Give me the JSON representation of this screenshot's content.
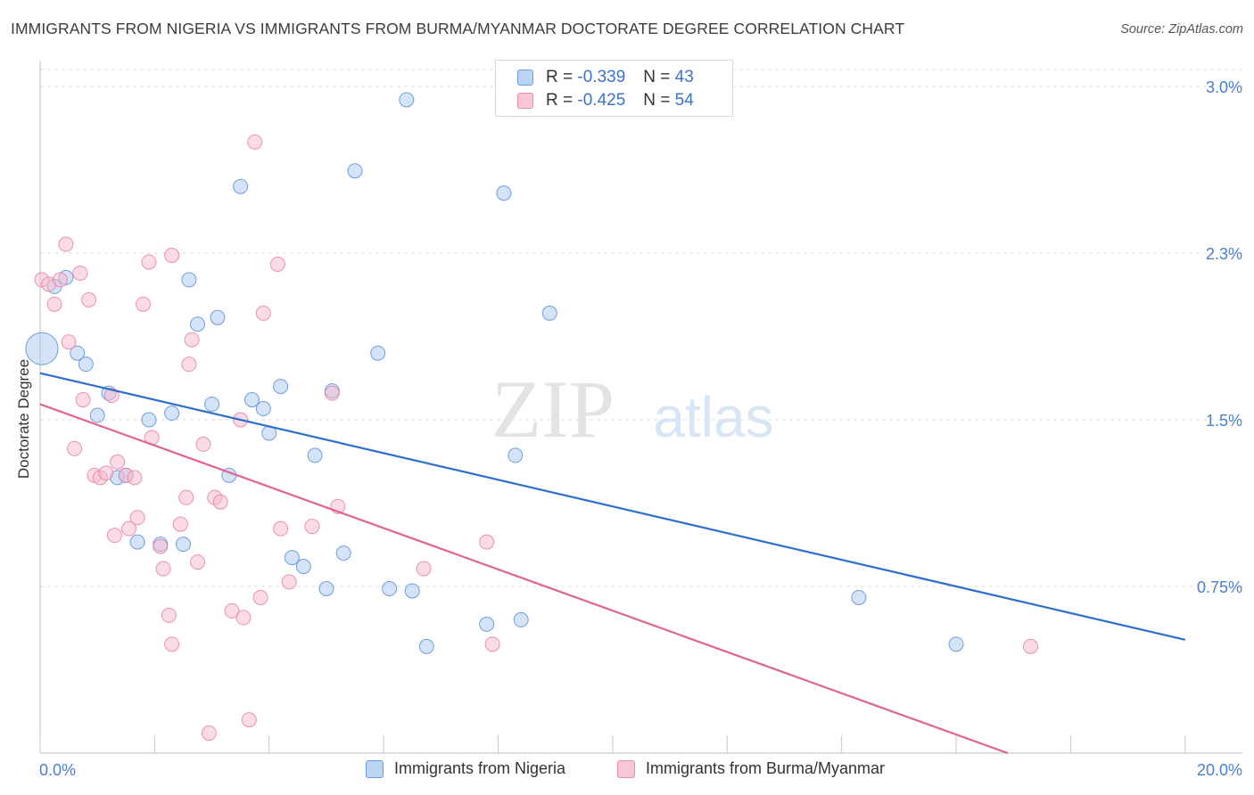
{
  "title": "IMMIGRANTS FROM NIGERIA VS IMMIGRANTS FROM BURMA/MYANMAR DOCTORATE DEGREE CORRELATION CHART",
  "source": "Source: ZipAtlas.com",
  "watermark": {
    "zip": "ZIP",
    "atlas": "atlas"
  },
  "colors": {
    "nigeria_fill": "#a9c8f0",
    "nigeria_stroke": "#5b8fd6",
    "nigeria_line": "#2d6fcb",
    "burma_fill": "#f7b9cd",
    "burma_stroke": "#e77fa3",
    "burma_line": "#e0648f",
    "tick_text": "#4a7fcf",
    "grid": "#dcdcdc"
  },
  "legend": {
    "r_label": "R =",
    "n_label": "N =",
    "rows": [
      {
        "r": "-0.339",
        "n": "43"
      },
      {
        "r": "-0.425",
        "n": "54"
      }
    ]
  },
  "bottom_legend": [
    "Immigrants from Nigeria",
    "Immigrants from Burma/Myanmar"
  ],
  "chart_data": {
    "type": "scatter",
    "title": "IMMIGRANTS FROM NIGERIA VS IMMIGRANTS FROM BURMA/MYANMAR DOCTORATE DEGREE CORRELATION CHART",
    "xlabel": "",
    "ylabel": "Doctorate Degree",
    "xlim": [
      0,
      21
    ],
    "ylim": [
      0,
      3.0
    ],
    "x_ticks_labeled": [
      {
        "value": 0,
        "label": "0.0%"
      },
      {
        "value": 20,
        "label": "20.0%"
      }
    ],
    "y_ticks": [
      {
        "value": 0.75,
        "label": "0.75%"
      },
      {
        "value": 1.5,
        "label": "1.5%"
      },
      {
        "value": 2.25,
        "label": "2.3%"
      },
      {
        "value": 3.0,
        "label": "3.0%"
      }
    ],
    "grid": true,
    "legend_position": "top-center",
    "series": [
      {
        "name": "Immigrants from Nigeria",
        "r": -0.339,
        "n": 43,
        "trend": {
          "x": [
            0,
            20.0
          ],
          "y": [
            1.71,
            0.51
          ]
        },
        "points": [
          [
            0,
            1.82
          ],
          [
            0.25,
            2.1
          ],
          [
            0.45,
            2.14
          ],
          [
            0.65,
            1.8
          ],
          [
            0.8,
            1.75
          ],
          [
            1.0,
            1.52
          ],
          [
            1.2,
            1.62
          ],
          [
            1.35,
            1.24
          ],
          [
            1.5,
            1.25
          ],
          [
            1.7,
            0.95
          ],
          [
            1.9,
            1.5
          ],
          [
            2.1,
            0.94
          ],
          [
            2.3,
            1.53
          ],
          [
            2.5,
            0.94
          ],
          [
            2.6,
            2.13
          ],
          [
            2.75,
            1.93
          ],
          [
            3.0,
            1.57
          ],
          [
            3.1,
            1.96
          ],
          [
            3.3,
            1.25
          ],
          [
            3.5,
            2.55
          ],
          [
            3.7,
            1.59
          ],
          [
            3.9,
            1.55
          ],
          [
            4.0,
            1.44
          ],
          [
            4.2,
            1.65
          ],
          [
            4.4,
            0.88
          ],
          [
            4.6,
            0.84
          ],
          [
            4.8,
            1.34
          ],
          [
            5.0,
            0.74
          ],
          [
            5.1,
            1.63
          ],
          [
            5.3,
            0.9
          ],
          [
            5.5,
            2.62
          ],
          [
            5.9,
            1.8
          ],
          [
            6.1,
            0.74
          ],
          [
            6.5,
            0.73
          ],
          [
            6.75,
            0.48
          ],
          [
            6.4,
            2.94
          ],
          [
            7.8,
            0.58
          ],
          [
            8.1,
            2.52
          ],
          [
            8.3,
            1.34
          ],
          [
            8.4,
            0.6
          ],
          [
            8.9,
            1.98
          ],
          [
            14.3,
            0.7
          ],
          [
            16.0,
            0.49
          ]
        ]
      },
      {
        "name": "Immigrants from Burma/Myanmar",
        "r": -0.425,
        "n": 54,
        "trend": {
          "x": [
            0,
            16.9
          ],
          "y": [
            1.57,
            0.0
          ]
        },
        "points": [
          [
            0,
            2.13
          ],
          [
            0.15,
            2.11
          ],
          [
            0.25,
            2.02
          ],
          [
            0.35,
            2.13
          ],
          [
            0.45,
            2.29
          ],
          [
            0.5,
            1.85
          ],
          [
            0.6,
            1.37
          ],
          [
            0.7,
            2.16
          ],
          [
            0.75,
            1.59
          ],
          [
            0.85,
            2.04
          ],
          [
            0.95,
            1.25
          ],
          [
            1.05,
            1.24
          ],
          [
            1.15,
            1.26
          ],
          [
            1.25,
            1.61
          ],
          [
            1.3,
            0.98
          ],
          [
            1.35,
            1.31
          ],
          [
            1.5,
            1.25
          ],
          [
            1.55,
            1.01
          ],
          [
            1.65,
            1.24
          ],
          [
            1.7,
            1.06
          ],
          [
            1.8,
            2.02
          ],
          [
            1.9,
            2.21
          ],
          [
            1.95,
            1.42
          ],
          [
            2.1,
            0.93
          ],
          [
            2.15,
            0.83
          ],
          [
            2.25,
            0.62
          ],
          [
            2.3,
            0.49
          ],
          [
            2.45,
            1.03
          ],
          [
            2.55,
            1.15
          ],
          [
            2.6,
            1.75
          ],
          [
            2.65,
            1.86
          ],
          [
            2.75,
            0.86
          ],
          [
            2.85,
            1.39
          ],
          [
            2.95,
            0.09
          ],
          [
            3.05,
            1.15
          ],
          [
            3.15,
            1.13
          ],
          [
            3.35,
            0.64
          ],
          [
            3.5,
            1.5
          ],
          [
            3.55,
            0.61
          ],
          [
            3.65,
            0.15
          ],
          [
            3.75,
            2.75
          ],
          [
            3.85,
            0.7
          ],
          [
            3.9,
            1.98
          ],
          [
            4.15,
            2.2
          ],
          [
            4.2,
            1.01
          ],
          [
            4.35,
            0.77
          ],
          [
            4.75,
            1.02
          ],
          [
            5.1,
            1.62
          ],
          [
            5.2,
            1.11
          ],
          [
            6.7,
            0.83
          ],
          [
            7.8,
            0.95
          ],
          [
            7.9,
            0.49
          ],
          [
            17.3,
            0.48
          ],
          [
            2.3,
            2.24
          ]
        ]
      }
    ]
  }
}
